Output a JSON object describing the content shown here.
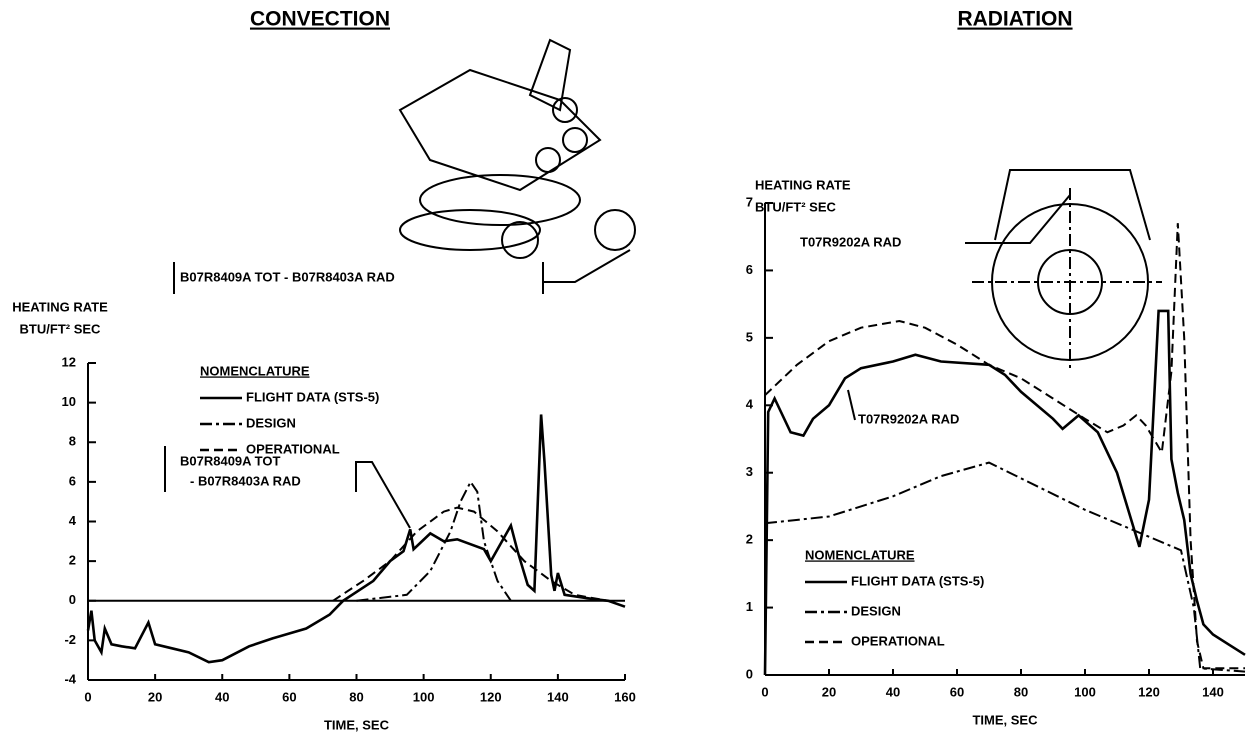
{
  "chart_data": [
    {
      "type": "line",
      "title": "CONVECTION",
      "ylabel": [
        "HEATING RATE",
        "BTU/FT² SEC"
      ],
      "xlabel": "TIME, SEC",
      "xlim": [
        0,
        160
      ],
      "xticks": [
        0,
        20,
        40,
        60,
        80,
        100,
        120,
        140,
        160
      ],
      "ylim": [
        -4,
        12
      ],
      "yticks": [
        -4,
        -2,
        0,
        2,
        4,
        6,
        8,
        10,
        12
      ],
      "legend_title": "NOMENCLATURE",
      "legend": "upper left",
      "annotations": [
        "B07R8409A TOT - B07R8403A RAD",
        "B07R8409A TOT",
        "- B07R8403A RAD"
      ],
      "series": [
        {
          "name": "FLIGHT DATA (STS-5)",
          "color": "#000000",
          "style": "solid",
          "x": [
            0,
            1,
            2,
            4,
            5,
            7,
            10,
            14,
            18,
            20,
            25,
            30,
            36,
            40,
            48,
            55,
            65,
            72,
            76,
            85,
            90,
            94,
            96,
            97,
            102,
            106,
            110,
            118,
            120,
            126,
            128,
            131,
            133,
            135,
            136,
            138,
            139,
            140,
            142,
            150,
            155,
            160
          ],
          "values": [
            -1.5,
            -0.5,
            -2,
            -2.6,
            -1.4,
            -2.2,
            -2.3,
            -2.4,
            -1.1,
            -2.2,
            -2.4,
            -2.6,
            -3.1,
            -3.0,
            -2.3,
            -1.9,
            -1.4,
            -0.7,
            0,
            1.0,
            2.0,
            2.5,
            3.6,
            2.6,
            3.4,
            3.0,
            3.1,
            2.6,
            2.0,
            3.8,
            2.5,
            0.8,
            0.5,
            9.4,
            7.0,
            1.3,
            0.5,
            1.4,
            0.3,
            0.1,
            0,
            -0.3
          ]
        },
        {
          "name": "DESIGN",
          "color": "#000000",
          "style": "dashdot",
          "x": [
            80,
            95,
            102,
            108,
            111,
            114,
            116,
            118,
            122,
            126
          ],
          "values": [
            0,
            0.3,
            1.5,
            3.5,
            5.0,
            6.0,
            5.5,
            3.0,
            1.0,
            0
          ]
        },
        {
          "name": "OPERATIONAL",
          "color": "#000000",
          "style": "dashed",
          "x": [
            73,
            82,
            90,
            98,
            106,
            110,
            115,
            122,
            130,
            138,
            145,
            155
          ],
          "values": [
            0,
            1.0,
            2.0,
            3.5,
            4.5,
            4.7,
            4.5,
            3.5,
            2.0,
            1.0,
            0.3,
            0
          ]
        }
      ]
    },
    {
      "type": "line",
      "title": "RADIATION",
      "ylabel": [
        "HEATING RATE",
        "BTU/FT² SEC"
      ],
      "xlabel": "TIME, SEC",
      "xlim": [
        0,
        150
      ],
      "xticks": [
        0,
        20,
        40,
        60,
        80,
        100,
        120,
        140
      ],
      "ylim": [
        0,
        7
      ],
      "yticks": [
        0,
        1,
        2,
        3,
        4,
        5,
        6,
        7
      ],
      "legend_title": "NOMENCLATURE",
      "legend": "lower left",
      "annotations": [
        "T07R9202A RAD",
        "T07R9202A RAD"
      ],
      "series": [
        {
          "name": "FLIGHT DATA (STS-5)",
          "color": "#000000",
          "style": "solid",
          "x": [
            0,
            1,
            3,
            5,
            8,
            12,
            15,
            20,
            25,
            30,
            40,
            47,
            55,
            70,
            75,
            80,
            90,
            93,
            98,
            104,
            110,
            117,
            120,
            123,
            126,
            127,
            129,
            131,
            133,
            135,
            137,
            140,
            145,
            150
          ],
          "values": [
            0,
            3.9,
            4.1,
            3.9,
            3.6,
            3.55,
            3.8,
            4.0,
            4.4,
            4.55,
            4.65,
            4.75,
            4.65,
            4.6,
            4.45,
            4.2,
            3.8,
            3.65,
            3.85,
            3.6,
            3.0,
            1.9,
            2.6,
            5.4,
            5.4,
            3.2,
            2.7,
            2.3,
            1.5,
            1.1,
            0.75,
            0.6,
            0.45,
            0.3
          ]
        },
        {
          "name": "DESIGN",
          "color": "#000000",
          "style": "dashdot",
          "x": [
            0,
            20,
            40,
            55,
            70,
            85,
            100,
            115,
            130,
            134,
            136,
            150
          ],
          "values": [
            2.25,
            2.35,
            2.65,
            2.95,
            3.15,
            2.8,
            2.45,
            2.15,
            1.85,
            1.0,
            0.1,
            0.05
          ]
        },
        {
          "name": "OPERATIONAL",
          "color": "#000000",
          "style": "dashed",
          "x": [
            0,
            10,
            20,
            30,
            42,
            50,
            60,
            70,
            80,
            90,
            100,
            107,
            112,
            116,
            119,
            124,
            127,
            129,
            131,
            133,
            135,
            137,
            150
          ],
          "values": [
            4.15,
            4.6,
            4.95,
            5.15,
            5.25,
            5.15,
            4.9,
            4.6,
            4.4,
            4.1,
            3.8,
            3.6,
            3.7,
            3.85,
            3.7,
            3.3,
            4.5,
            6.7,
            5.0,
            2.0,
            0.5,
            0.1,
            0.1
          ]
        }
      ]
    }
  ]
}
